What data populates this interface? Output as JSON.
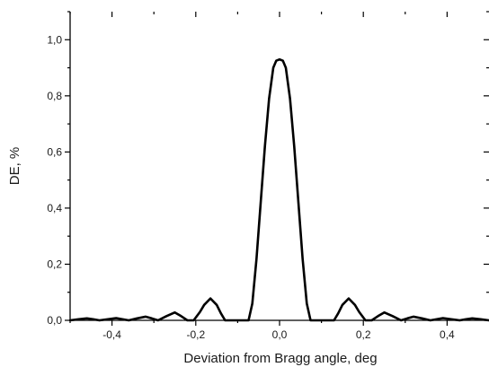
{
  "chart_data": {
    "type": "line",
    "title": "",
    "xlabel": "Deviation from Bragg angle, deg",
    "ylabel": "DE, %",
    "xlim": [
      -0.5,
      0.5
    ],
    "ylim": [
      0.0,
      1.1
    ],
    "x_ticks": [
      -0.4,
      -0.2,
      0.0,
      0.2,
      0.4
    ],
    "x_tick_labels": [
      "-0,4",
      "-0,2",
      "0,0",
      "0,2",
      "0,4"
    ],
    "y_ticks": [
      0.0,
      0.2,
      0.4,
      0.6,
      0.8,
      1.0
    ],
    "y_tick_labels": [
      "0,0",
      "0,2",
      "0,4",
      "0,6",
      "0,8",
      "1,0"
    ],
    "grid": false,
    "series": [
      {
        "peak_value": 0.93,
        "x": [
          -0.5,
          -0.48,
          -0.46,
          -0.445,
          -0.43,
          -0.41,
          -0.39,
          -0.375,
          -0.36,
          -0.34,
          -0.32,
          -0.305,
          -0.29,
          -0.27,
          -0.25,
          -0.235,
          -0.22,
          -0.205,
          -0.19,
          -0.18,
          -0.165,
          -0.15,
          -0.14,
          -0.13,
          -0.115,
          -0.1,
          -0.09,
          -0.08,
          -0.074,
          -0.065,
          -0.055,
          -0.045,
          -0.035,
          -0.025,
          -0.015,
          -0.008,
          0.0,
          0.008,
          0.015,
          0.025,
          0.035,
          0.045,
          0.055,
          0.065,
          0.074,
          0.08,
          0.09,
          0.1,
          0.115,
          0.13,
          0.14,
          0.15,
          0.165,
          0.18,
          0.19,
          0.205,
          0.22,
          0.235,
          0.25,
          0.27,
          0.29,
          0.305,
          0.32,
          0.34,
          0.36,
          0.375,
          0.39,
          0.41,
          0.43,
          0.445,
          0.46,
          0.48,
          0.5
        ],
        "y": [
          0.0,
          0.004,
          0.007,
          0.004,
          0.0,
          0.004,
          0.008,
          0.004,
          0.0,
          0.007,
          0.013,
          0.007,
          0.0,
          0.015,
          0.028,
          0.015,
          0.0,
          0.0,
          0.03,
          0.055,
          0.078,
          0.055,
          0.025,
          0.0,
          0.0,
          0.0,
          0.0,
          0.0,
          0.0,
          0.06,
          0.22,
          0.42,
          0.62,
          0.79,
          0.9,
          0.925,
          0.93,
          0.925,
          0.9,
          0.79,
          0.62,
          0.42,
          0.22,
          0.06,
          0.0,
          0.0,
          0.0,
          0.0,
          0.0,
          0.0,
          0.025,
          0.055,
          0.078,
          0.055,
          0.03,
          0.0,
          0.0,
          0.015,
          0.028,
          0.015,
          0.0,
          0.007,
          0.013,
          0.007,
          0.0,
          0.004,
          0.008,
          0.004,
          0.0,
          0.004,
          0.007,
          0.004,
          0.0
        ]
      }
    ],
    "colors": {
      "line": "#000000",
      "axis": "#000000",
      "text": "#1a1a1a",
      "background": "#ffffff"
    }
  }
}
